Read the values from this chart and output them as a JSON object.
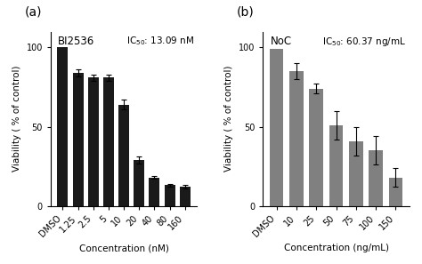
{
  "panel_a": {
    "title": "BI2536",
    "categories": [
      "DMSO",
      "1.25",
      "2.5",
      "5",
      "10",
      "20",
      "40",
      "80",
      "160"
    ],
    "values": [
      100,
      84,
      81,
      81,
      64,
      29,
      18,
      13,
      12
    ],
    "errors": [
      0,
      2,
      2,
      2,
      3,
      2,
      1,
      1,
      1
    ],
    "bar_color": "#1a1a1a",
    "xlabel": "Concentration (nM)",
    "ylabel": "Viability ( % of control)",
    "ic50_text": "IC$_{50}$: 13.09 nM",
    "ylim": [
      0,
      110
    ],
    "yticks": [
      0,
      50,
      100
    ],
    "panel_label": "(a)"
  },
  "panel_b": {
    "title": "NoC",
    "categories": [
      "DMSO",
      "10",
      "25",
      "50",
      "75",
      "100",
      "150"
    ],
    "values": [
      99,
      85,
      74,
      51,
      41,
      35,
      18
    ],
    "errors": [
      0,
      5,
      3,
      9,
      9,
      9,
      6
    ],
    "bar_color": "#808080",
    "xlabel": "Concentration (ng/mL)",
    "ylabel": "Viability ( % of control)",
    "ic50_text": "IC$_{50}$: 60.37 ng/mL",
    "ylim": [
      0,
      110
    ],
    "yticks": [
      0,
      50,
      100
    ],
    "panel_label": "(b)"
  },
  "figure_background": "#ffffff",
  "label_fontsize": 7.5,
  "title_fontsize": 8.5,
  "tick_fontsize": 7,
  "ic50_fontsize": 7.5,
  "panel_label_fontsize": 10
}
